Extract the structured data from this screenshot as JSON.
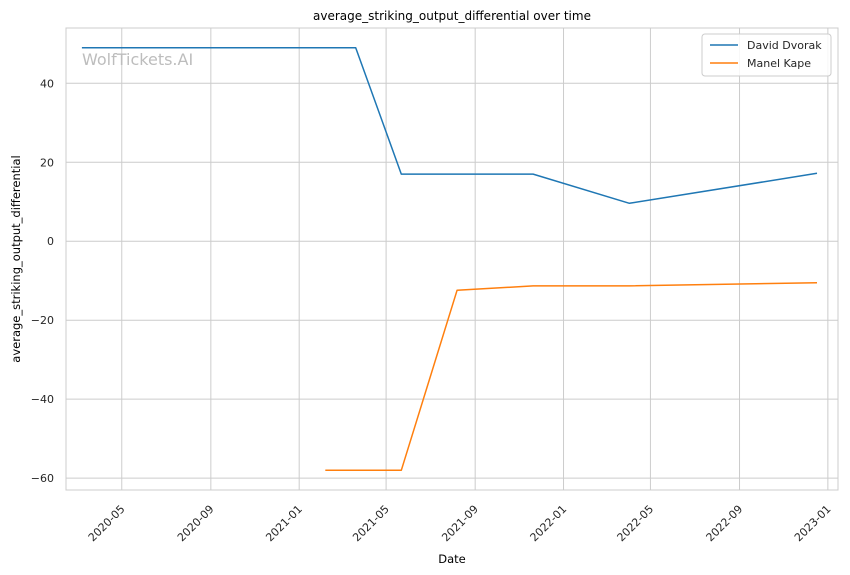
{
  "chart_data": {
    "type": "line",
    "title": "average_striking_output_differential over time",
    "xlabel": "Date",
    "ylabel": "average_striking_output_differential",
    "watermark": "WolfTickets.AI",
    "x_axis_type": "date",
    "xlim": [
      "2020-02-14",
      "2023-01-15"
    ],
    "ylim": [
      -63,
      54
    ],
    "x_ticks": [
      {
        "date": "2020-05-01",
        "label": "2020-05"
      },
      {
        "date": "2020-09-01",
        "label": "2020-09"
      },
      {
        "date": "2021-01-01",
        "label": "2021-01"
      },
      {
        "date": "2021-05-01",
        "label": "2021-05"
      },
      {
        "date": "2021-09-01",
        "label": "2021-09"
      },
      {
        "date": "2022-01-01",
        "label": "2022-01"
      },
      {
        "date": "2022-05-01",
        "label": "2022-05"
      },
      {
        "date": "2022-09-01",
        "label": "2022-09"
      },
      {
        "date": "2023-01-01",
        "label": "2023-01"
      }
    ],
    "y_ticks": [
      {
        "value": 40,
        "label": "40"
      },
      {
        "value": 20,
        "label": "20"
      },
      {
        "value": 0,
        "label": "0"
      },
      {
        "value": -20,
        "label": "−20"
      },
      {
        "value": -40,
        "label": "−40"
      },
      {
        "value": -60,
        "label": "−60"
      }
    ],
    "grid": true,
    "legend_position": "top-right",
    "series": [
      {
        "name": "David Dvorak",
        "color": "#1f77b4",
        "points": [
          {
            "x": "2020-03-07",
            "y": 49
          },
          {
            "x": "2021-03-20",
            "y": 49
          },
          {
            "x": "2021-05-22",
            "y": 17
          },
          {
            "x": "2021-11-20",
            "y": 17
          },
          {
            "x": "2022-04-02",
            "y": 9.6
          },
          {
            "x": "2022-12-17",
            "y": 17.2
          }
        ]
      },
      {
        "name": "Manel Kape",
        "color": "#ff7f0e",
        "points": [
          {
            "x": "2021-02-06",
            "y": -58
          },
          {
            "x": "2021-05-22",
            "y": -58
          },
          {
            "x": "2021-08-07",
            "y": -12.4
          },
          {
            "x": "2021-11-20",
            "y": -11.3
          },
          {
            "x": "2022-04-02",
            "y": -11.3
          },
          {
            "x": "2022-12-17",
            "y": -10.5
          }
        ]
      }
    ]
  }
}
